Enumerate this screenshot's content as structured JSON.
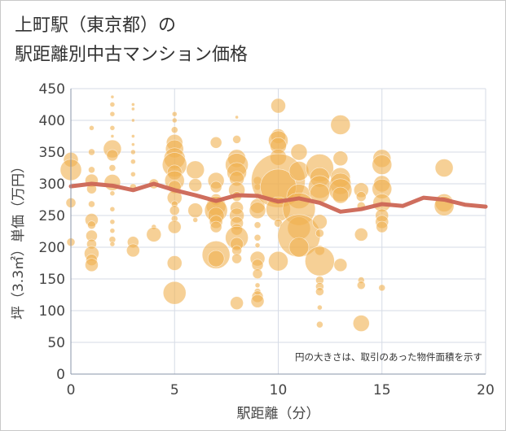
{
  "chart_data": {
    "type": "scatter",
    "title_line1": "上町駅（東京都）の",
    "title_line2": "駅距離別中古マンション価格",
    "xlabel": "駅距離（分）",
    "ylabel": "坪（3.3㎡）単価（万円）",
    "xlim": [
      0,
      20
    ],
    "ylim": [
      0,
      450
    ],
    "xticks": [
      0,
      5,
      10,
      15,
      20
    ],
    "yticks": [
      0,
      50,
      100,
      150,
      200,
      250,
      300,
      350,
      400,
      450
    ],
    "grid": true,
    "annotation": "円の大きさは、取引のあった物件面積を示す",
    "colors": {
      "bubble": "#f0b050",
      "trend": "#cc6655",
      "grid": "#d6dbe6"
    },
    "points": [
      {
        "x": 0,
        "y": 338,
        "r": 9
      },
      {
        "x": 0,
        "y": 322,
        "r": 13
      },
      {
        "x": 0,
        "y": 270,
        "r": 6
      },
      {
        "x": 0,
        "y": 208,
        "r": 5
      },
      {
        "x": 1,
        "y": 388,
        "r": 3
      },
      {
        "x": 1,
        "y": 350,
        "r": 4
      },
      {
        "x": 1,
        "y": 322,
        "r": 4
      },
      {
        "x": 1,
        "y": 305,
        "r": 8
      },
      {
        "x": 1,
        "y": 292,
        "r": 6
      },
      {
        "x": 1,
        "y": 268,
        "r": 4
      },
      {
        "x": 1,
        "y": 243,
        "r": 8
      },
      {
        "x": 1,
        "y": 235,
        "r": 5
      },
      {
        "x": 1,
        "y": 218,
        "r": 7
      },
      {
        "x": 1,
        "y": 205,
        "r": 6
      },
      {
        "x": 1,
        "y": 190,
        "r": 9
      },
      {
        "x": 1,
        "y": 180,
        "r": 7
      },
      {
        "x": 1,
        "y": 172,
        "r": 8
      },
      {
        "x": 2,
        "y": 437,
        "r": 2
      },
      {
        "x": 2,
        "y": 425,
        "r": 3
      },
      {
        "x": 2,
        "y": 410,
        "r": 3
      },
      {
        "x": 2,
        "y": 388,
        "r": 3
      },
      {
        "x": 2,
        "y": 375,
        "r": 2
      },
      {
        "x": 2,
        "y": 355,
        "r": 11
      },
      {
        "x": 2,
        "y": 345,
        "r": 7
      },
      {
        "x": 2,
        "y": 325,
        "r": 4
      },
      {
        "x": 2,
        "y": 302,
        "r": 10
      },
      {
        "x": 2,
        "y": 285,
        "r": 3
      },
      {
        "x": 2,
        "y": 260,
        "r": 3
      },
      {
        "x": 2,
        "y": 240,
        "r": 3
      },
      {
        "x": 2,
        "y": 226,
        "r": 3
      },
      {
        "x": 2,
        "y": 212,
        "r": 4
      },
      {
        "x": 2,
        "y": 205,
        "r": 3
      },
      {
        "x": 3,
        "y": 425,
        "r": 2
      },
      {
        "x": 3,
        "y": 418,
        "r": 2
      },
      {
        "x": 3,
        "y": 400,
        "r": 2
      },
      {
        "x": 3,
        "y": 375,
        "r": 2
      },
      {
        "x": 3,
        "y": 362,
        "r": 2
      },
      {
        "x": 3,
        "y": 350,
        "r": 3
      },
      {
        "x": 3,
        "y": 335,
        "r": 3
      },
      {
        "x": 3,
        "y": 315,
        "r": 3
      },
      {
        "x": 3,
        "y": 295,
        "r": 4
      },
      {
        "x": 3,
        "y": 208,
        "r": 7
      },
      {
        "x": 3,
        "y": 195,
        "r": 8
      },
      {
        "x": 4,
        "y": 300,
        "r": 6
      },
      {
        "x": 4,
        "y": 232,
        "r": 3
      },
      {
        "x": 4,
        "y": 220,
        "r": 9
      },
      {
        "x": 5,
        "y": 410,
        "r": 3
      },
      {
        "x": 5,
        "y": 400,
        "r": 3
      },
      {
        "x": 5,
        "y": 385,
        "r": 4
      },
      {
        "x": 5,
        "y": 365,
        "r": 10
      },
      {
        "x": 5,
        "y": 355,
        "r": 11
      },
      {
        "x": 5,
        "y": 340,
        "r": 13
      },
      {
        "x": 5,
        "y": 330,
        "r": 15
      },
      {
        "x": 5,
        "y": 318,
        "r": 9
      },
      {
        "x": 5,
        "y": 305,
        "r": 12
      },
      {
        "x": 5,
        "y": 295,
        "r": 8
      },
      {
        "x": 5,
        "y": 278,
        "r": 9
      },
      {
        "x": 5,
        "y": 268,
        "r": 4
      },
      {
        "x": 5,
        "y": 258,
        "r": 6
      },
      {
        "x": 5,
        "y": 245,
        "r": 4
      },
      {
        "x": 5,
        "y": 232,
        "r": 8
      },
      {
        "x": 5,
        "y": 175,
        "r": 9
      },
      {
        "x": 5,
        "y": 128,
        "r": 14
      },
      {
        "x": 6,
        "y": 322,
        "r": 11
      },
      {
        "x": 6,
        "y": 298,
        "r": 8
      },
      {
        "x": 6,
        "y": 258,
        "r": 9
      },
      {
        "x": 6,
        "y": 243,
        "r": 3
      },
      {
        "x": 7,
        "y": 365,
        "r": 7
      },
      {
        "x": 7,
        "y": 305,
        "r": 10
      },
      {
        "x": 7,
        "y": 295,
        "r": 7
      },
      {
        "x": 7,
        "y": 275,
        "r": 7
      },
      {
        "x": 7,
        "y": 265,
        "r": 12
      },
      {
        "x": 7,
        "y": 258,
        "r": 14
      },
      {
        "x": 7,
        "y": 250,
        "r": 10
      },
      {
        "x": 7,
        "y": 240,
        "r": 8
      },
      {
        "x": 7,
        "y": 232,
        "r": 7
      },
      {
        "x": 7,
        "y": 188,
        "r": 17
      },
      {
        "x": 7,
        "y": 182,
        "r": 10
      },
      {
        "x": 8,
        "y": 405,
        "r": 2
      },
      {
        "x": 8,
        "y": 370,
        "r": 5
      },
      {
        "x": 8,
        "y": 340,
        "r": 11
      },
      {
        "x": 8,
        "y": 330,
        "r": 14
      },
      {
        "x": 8,
        "y": 318,
        "r": 12
      },
      {
        "x": 8,
        "y": 308,
        "r": 9
      },
      {
        "x": 8,
        "y": 290,
        "r": 10
      },
      {
        "x": 8,
        "y": 280,
        "r": 6
      },
      {
        "x": 8,
        "y": 262,
        "r": 8
      },
      {
        "x": 8,
        "y": 250,
        "r": 9
      },
      {
        "x": 8,
        "y": 238,
        "r": 8
      },
      {
        "x": 8,
        "y": 228,
        "r": 7
      },
      {
        "x": 8,
        "y": 215,
        "r": 14
      },
      {
        "x": 8,
        "y": 205,
        "r": 8
      },
      {
        "x": 8,
        "y": 195,
        "r": 6
      },
      {
        "x": 8,
        "y": 182,
        "r": 6
      },
      {
        "x": 8,
        "y": 112,
        "r": 8
      },
      {
        "x": 9,
        "y": 305,
        "r": 5
      },
      {
        "x": 9,
        "y": 295,
        "r": 4
      },
      {
        "x": 9,
        "y": 280,
        "r": 3
      },
      {
        "x": 9,
        "y": 265,
        "r": 9
      },
      {
        "x": 9,
        "y": 258,
        "r": 10
      },
      {
        "x": 9,
        "y": 235,
        "r": 4
      },
      {
        "x": 9,
        "y": 215,
        "r": 4
      },
      {
        "x": 9,
        "y": 203,
        "r": 3
      },
      {
        "x": 9,
        "y": 182,
        "r": 9
      },
      {
        "x": 9,
        "y": 172,
        "r": 7
      },
      {
        "x": 9,
        "y": 158,
        "r": 6
      },
      {
        "x": 9,
        "y": 140,
        "r": 3
      },
      {
        "x": 9,
        "y": 130,
        "r": 4
      },
      {
        "x": 9,
        "y": 122,
        "r": 7
      },
      {
        "x": 9,
        "y": 115,
        "r": 8
      },
      {
        "x": 10,
        "y": 423,
        "r": 9
      },
      {
        "x": 10,
        "y": 375,
        "r": 9
      },
      {
        "x": 10,
        "y": 368,
        "r": 12
      },
      {
        "x": 10,
        "y": 360,
        "r": 10
      },
      {
        "x": 10,
        "y": 342,
        "r": 10
      },
      {
        "x": 10,
        "y": 305,
        "r": 33
      },
      {
        "x": 10,
        "y": 295,
        "r": 22
      },
      {
        "x": 10,
        "y": 260,
        "r": 15
      },
      {
        "x": 10,
        "y": 238,
        "r": 5
      },
      {
        "x": 10,
        "y": 178,
        "r": 12
      },
      {
        "x": 11,
        "y": 350,
        "r": 10
      },
      {
        "x": 11,
        "y": 320,
        "r": 12
      },
      {
        "x": 11,
        "y": 280,
        "r": 15
      },
      {
        "x": 11,
        "y": 260,
        "r": 20
      },
      {
        "x": 11,
        "y": 230,
        "r": 14
      },
      {
        "x": 11,
        "y": 218,
        "r": 26
      },
      {
        "x": 11,
        "y": 200,
        "r": 12
      },
      {
        "x": 12,
        "y": 325,
        "r": 17
      },
      {
        "x": 12,
        "y": 310,
        "r": 12
      },
      {
        "x": 12,
        "y": 295,
        "r": 14
      },
      {
        "x": 12,
        "y": 285,
        "r": 12
      },
      {
        "x": 12,
        "y": 240,
        "r": 9
      },
      {
        "x": 12,
        "y": 222,
        "r": 5
      },
      {
        "x": 12,
        "y": 195,
        "r": 6
      },
      {
        "x": 12,
        "y": 178,
        "r": 18
      },
      {
        "x": 12,
        "y": 148,
        "r": 5
      },
      {
        "x": 12,
        "y": 138,
        "r": 5
      },
      {
        "x": 12,
        "y": 130,
        "r": 5
      },
      {
        "x": 12,
        "y": 105,
        "r": 3
      },
      {
        "x": 12,
        "y": 78,
        "r": 4
      },
      {
        "x": 13,
        "y": 393,
        "r": 12
      },
      {
        "x": 13,
        "y": 340,
        "r": 9
      },
      {
        "x": 13,
        "y": 310,
        "r": 12
      },
      {
        "x": 13,
        "y": 300,
        "r": 13
      },
      {
        "x": 13,
        "y": 290,
        "r": 14
      },
      {
        "x": 13,
        "y": 282,
        "r": 10
      },
      {
        "x": 13,
        "y": 172,
        "r": 8
      },
      {
        "x": 14,
        "y": 290,
        "r": 9
      },
      {
        "x": 14,
        "y": 280,
        "r": 6
      },
      {
        "x": 14,
        "y": 265,
        "r": 5
      },
      {
        "x": 14,
        "y": 220,
        "r": 8
      },
      {
        "x": 14,
        "y": 148,
        "r": 4
      },
      {
        "x": 14,
        "y": 140,
        "r": 5
      },
      {
        "x": 14,
        "y": 80,
        "r": 10
      },
      {
        "x": 15,
        "y": 340,
        "r": 11
      },
      {
        "x": 15,
        "y": 330,
        "r": 12
      },
      {
        "x": 15,
        "y": 300,
        "r": 10
      },
      {
        "x": 15,
        "y": 292,
        "r": 12
      },
      {
        "x": 15,
        "y": 270,
        "r": 11
      },
      {
        "x": 15,
        "y": 250,
        "r": 8
      },
      {
        "x": 15,
        "y": 240,
        "r": 8
      },
      {
        "x": 15,
        "y": 232,
        "r": 7
      },
      {
        "x": 15,
        "y": 136,
        "r": 4
      },
      {
        "x": 18,
        "y": 325,
        "r": 11
      },
      {
        "x": 18,
        "y": 270,
        "r": 11
      },
      {
        "x": 18,
        "y": 265,
        "r": 12
      }
    ],
    "trend": {
      "x": [
        0,
        1,
        2,
        3,
        4,
        5,
        6,
        7,
        8,
        9,
        10,
        11,
        12,
        13,
        14,
        15,
        16,
        17,
        18,
        19,
        20
      ],
      "y": [
        296,
        300,
        297,
        290,
        300,
        290,
        282,
        273,
        282,
        281,
        272,
        277,
        270,
        256,
        260,
        268,
        265,
        278,
        275,
        267,
        264
      ]
    }
  }
}
